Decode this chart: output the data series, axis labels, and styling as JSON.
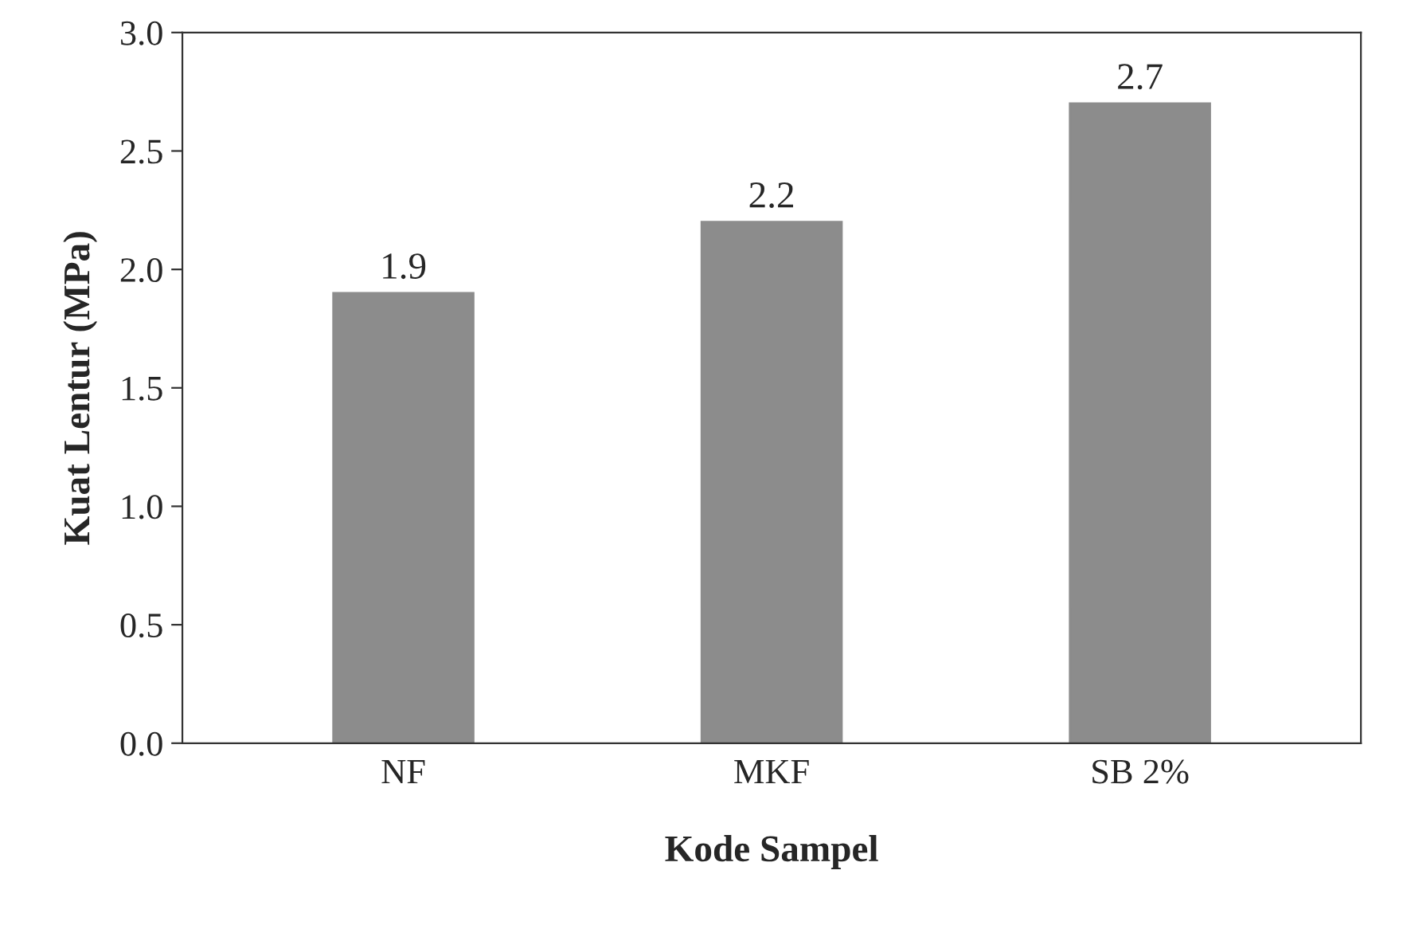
{
  "chart_data": {
    "type": "bar",
    "xlabel": "Kode Sampel",
    "ylabel": "Kuat Lentur (MPa)",
    "categories": [
      "NF",
      "MKF",
      "SB 2%"
    ],
    "values": [
      1.9,
      2.2,
      2.7
    ],
    "color": "#8c8c8c",
    "ylim": [
      0,
      3
    ],
    "yticks": [
      {
        "value": 0,
        "label": "0.0"
      },
      {
        "value": 0.5,
        "label": "0.5"
      },
      {
        "value": 1,
        "label": "1.0"
      },
      {
        "value": 1.5,
        "label": "1.5"
      },
      {
        "value": 2,
        "label": "2.0"
      },
      {
        "value": 2.5,
        "label": "2.5"
      },
      {
        "value": 3,
        "label": "3.0"
      }
    ],
    "data_labels": true,
    "grid": false,
    "legend": false
  }
}
